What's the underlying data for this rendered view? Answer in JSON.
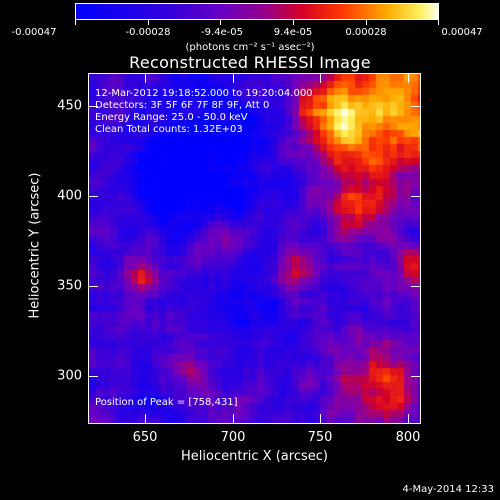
{
  "colorbar": {
    "tick_labels": [
      "-0.00047",
      "-0.00028",
      "-9.4e-05",
      "9.4e-05",
      "0.00028",
      "0.00047"
    ],
    "unit_label": "(photons cm⁻² s⁻¹ asec⁻²)"
  },
  "plot": {
    "title": "Reconstructed RHESSI Image",
    "info": [
      "12-Mar-2012 19:18:52.000 to 19:20:04.000",
      "Detectors: 3F 5F 6F 7F 8F 9F, Att 0",
      "Energy Range: 25.0 - 50.0 keV",
      "Clean     Total counts: 1.32E+03"
    ],
    "peak_text": "Position of Peak = [758,431]",
    "xlabel": "Heliocentric X (arcsec)",
    "ylabel": "Heliocentric Y (arcsec)",
    "x_ticks": [
      "650",
      "700",
      "750",
      "800"
    ],
    "y_ticks": [
      "450",
      "400",
      "350",
      "300"
    ]
  },
  "chart_data": {
    "type": "heatmap",
    "title": "Reconstructed RHESSI Image",
    "xlabel": "Heliocentric X (arcsec)",
    "ylabel": "Heliocentric Y (arcsec)",
    "xlim": [
      613,
      805
    ],
    "ylim": [
      272,
      475
    ],
    "zlim": [
      -0.00047,
      0.00047
    ],
    "colorbar_ticks": [
      -0.00047,
      -0.00028,
      -9.4e-05,
      9.4e-05,
      0.00028,
      0.00047
    ],
    "peak_position": [
      758,
      431
    ],
    "colors": {
      "low": "#0000ff",
      "mid": "#7b00d0",
      "high": "#ff4000",
      "max": "#ffffd0"
    }
  },
  "datestamp": "4-May-2014 12:33"
}
